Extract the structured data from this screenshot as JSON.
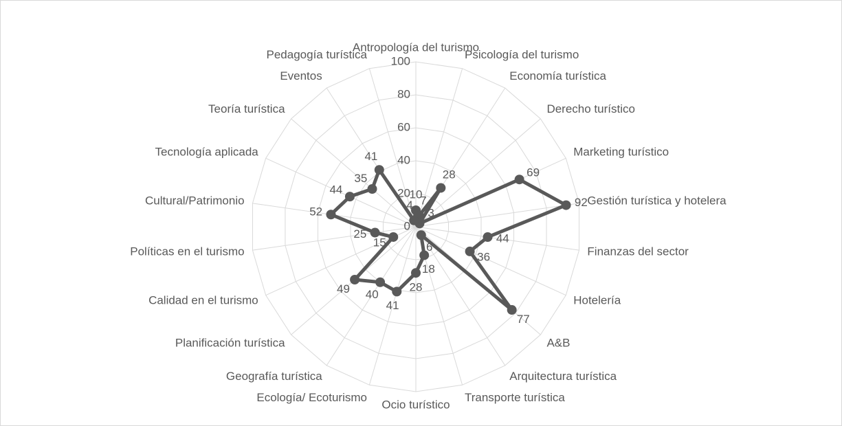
{
  "chart_data": {
    "type": "radar",
    "categories": [
      "Antropología del turismo",
      "Psicología del turismo",
      "Economía turística",
      "Derecho turístico",
      "Marketing turístico",
      "Gestión turística y hotelera",
      "Finanzas del sector",
      "Hotelería",
      "A&B",
      "Arquitectura  turística",
      "Transporte turística",
      "Ocio turístico",
      "Ecología/ Ecoturismo",
      "Geografía turística",
      "Planificación turística",
      "Calidad en el turismo",
      "Políticas en el turismo",
      "Cultural/Patrimonio",
      "Tecnología aplicada",
      "Teoría turística",
      "Eventos",
      "Pedagogía turística"
    ],
    "values": [
      10,
      7,
      28,
      3,
      69,
      92,
      44,
      36,
      77,
      6,
      18,
      28,
      41,
      40,
      49,
      15,
      25,
      52,
      44,
      35,
      41,
      4
    ],
    "color": "#595959",
    "ylim": [
      0,
      100
    ],
    "yticks": [
      0,
      20,
      40,
      60,
      80,
      100
    ],
    "grid": true
  }
}
